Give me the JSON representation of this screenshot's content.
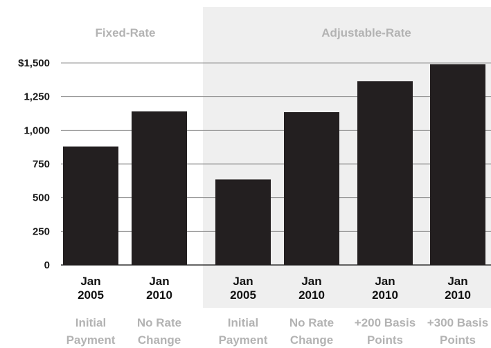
{
  "chart_data": {
    "type": "bar",
    "title": "",
    "xlabel": "",
    "ylabel": "",
    "ylim": [
      0,
      1500
    ],
    "yticks": [
      "$1,500",
      "1,250",
      "1,000",
      "750",
      "500",
      "250",
      "0"
    ],
    "groups": [
      "Fixed-Rate",
      "Adjustable-Rate"
    ],
    "categories": [
      {
        "date_line1": "Jan",
        "date_line2": "2005",
        "desc_line1": "Initial",
        "desc_line2": "Payment",
        "group": "Fixed-Rate"
      },
      {
        "date_line1": "Jan",
        "date_line2": "2010",
        "desc_line1": "No Rate",
        "desc_line2": "Change",
        "group": "Fixed-Rate"
      },
      {
        "date_line1": "Jan",
        "date_line2": "2005",
        "desc_line1": "Initial",
        "desc_line2": "Payment",
        "group": "Adjustable-Rate"
      },
      {
        "date_line1": "Jan",
        "date_line2": "2010",
        "desc_line1": "No Rate",
        "desc_line2": "Change",
        "group": "Adjustable-Rate"
      },
      {
        "date_line1": "Jan",
        "date_line2": "2010",
        "desc_line1": "+200 Basis",
        "desc_line2": "Points",
        "group": "Adjustable-Rate"
      },
      {
        "date_line1": "Jan",
        "date_line2": "2010",
        "desc_line1": "+300 Basis",
        "desc_line2": "Points",
        "group": "Adjustable-Rate"
      }
    ],
    "values": [
      880,
      1140,
      635,
      1135,
      1365,
      1490
    ],
    "grid": true,
    "colors": {
      "bar": "#231f20",
      "grid": "#8c8c8c",
      "shade": "#efefef",
      "group_label": "#b3b3b3",
      "tick_label": "#1a1a1a"
    }
  }
}
